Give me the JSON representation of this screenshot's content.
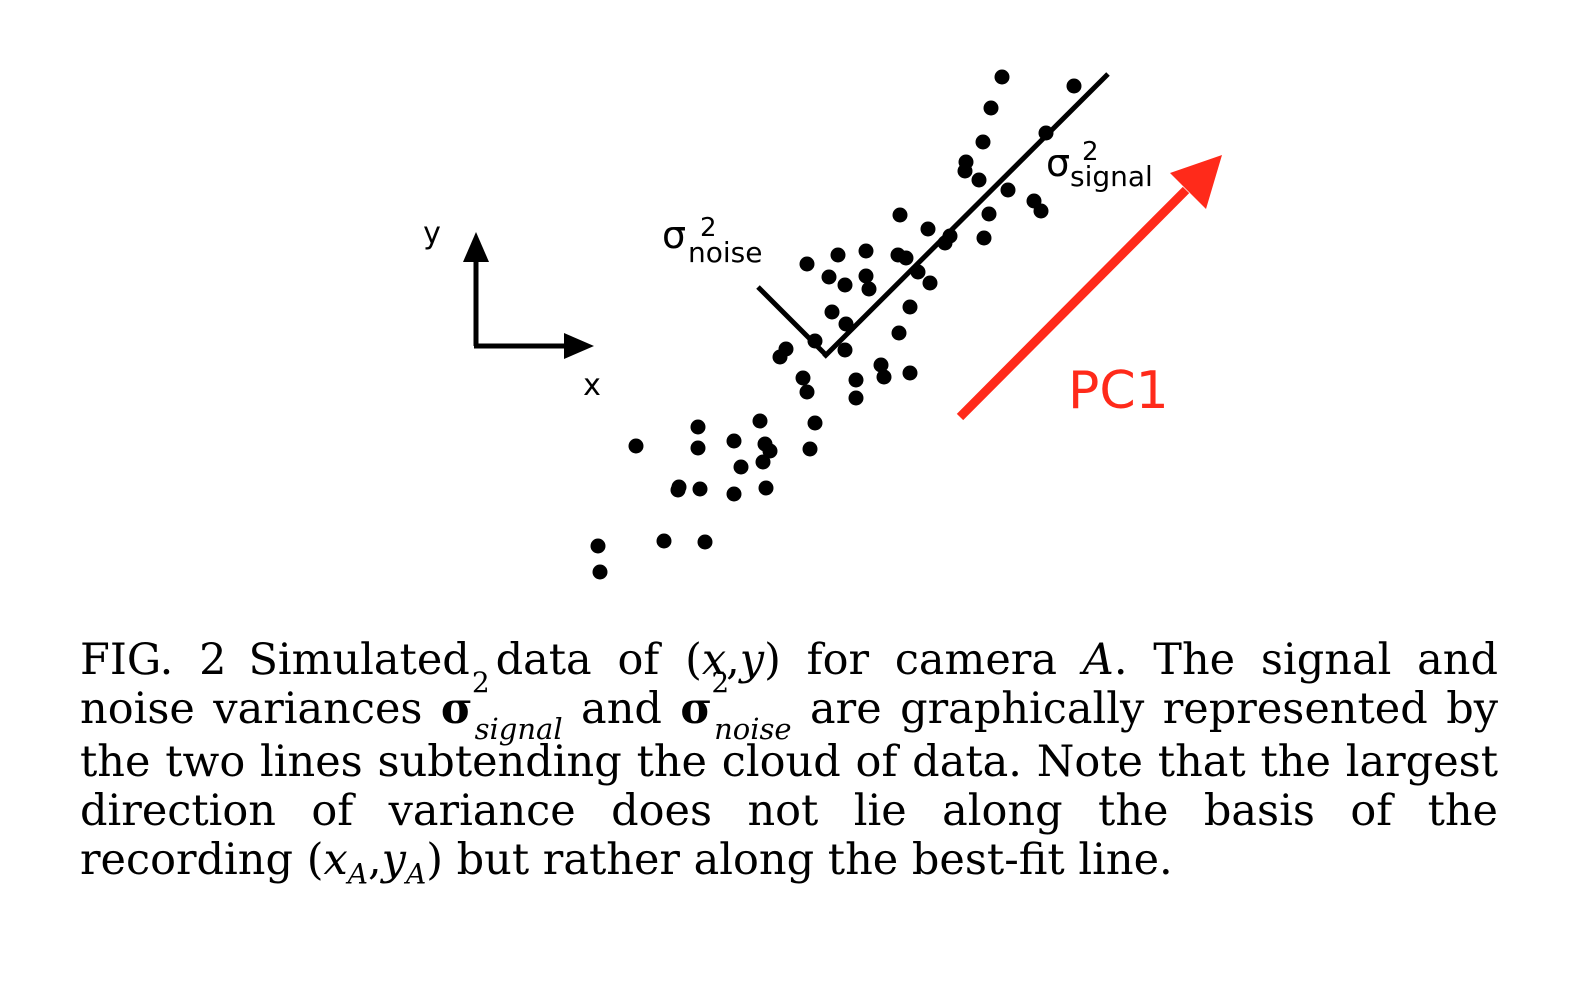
{
  "figure": {
    "axis_labels": {
      "x": "x",
      "y": "y"
    },
    "noise_label": {
      "symbol": "σ",
      "superscript": "2",
      "subscript": "noise"
    },
    "signal_label": {
      "symbol": "σ",
      "superscript": "2",
      "subscript": "signal"
    },
    "pc_label": "PC1",
    "colors": {
      "points": "#000000",
      "pc_arrow": "#ff2a1a",
      "axes": "#000000"
    }
  },
  "caption": {
    "fig_label": "FIG. 2",
    "part1": "Simulated data of (",
    "x": "x",
    "comma": ",",
    "y": "y",
    "part2": ") for camera ",
    "camera": "A",
    "part3": ". The signal and noise variances ",
    "sigma": "σ",
    "two": "2",
    "signal": "signal",
    "and": " and ",
    "noise": "noise",
    "part4": " are graphically represented by the two lines subtending the cloud of data.  Note that the largest direction of variance does not lie along the basis of the recording (",
    "xA": "x",
    "subA1": "A",
    "comma2": ",",
    "yA": "y",
    "subA2": "A",
    "part5": ") but rather along the best-fit line."
  }
}
